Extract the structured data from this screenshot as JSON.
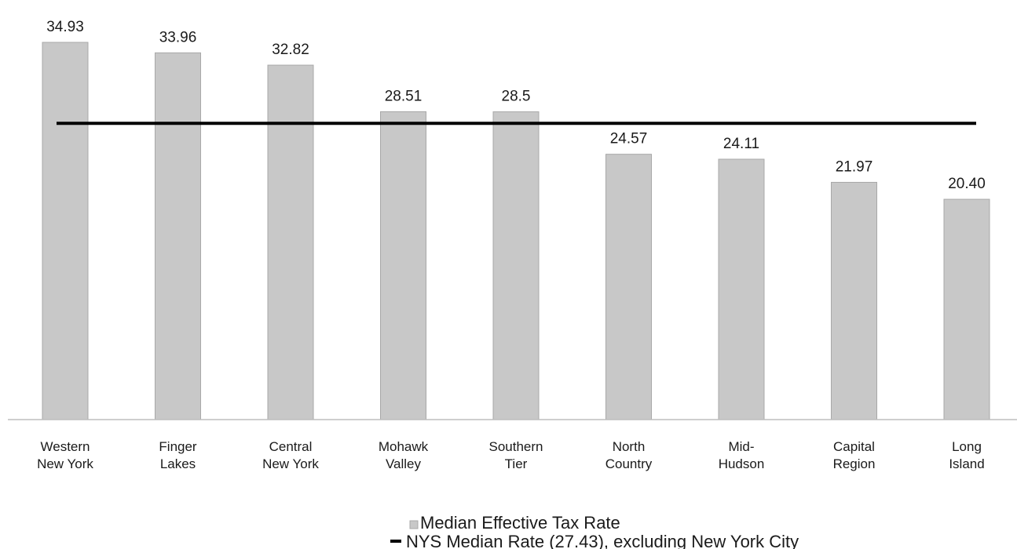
{
  "chart_data": {
    "type": "bar",
    "title": "",
    "xlabel": "",
    "ylabel": "",
    "ylim": [
      0,
      37
    ],
    "grid": false,
    "categories": [
      [
        "Western",
        "New York"
      ],
      [
        "Finger",
        "Lakes"
      ],
      [
        "Central",
        "New York"
      ],
      [
        "Mohawk",
        "Valley"
      ],
      [
        "Southern",
        "Tier"
      ],
      [
        "North",
        "Country"
      ],
      [
        "Mid-",
        "Hudson"
      ],
      [
        "Capital",
        "Region"
      ],
      [
        "Long",
        "Island"
      ]
    ],
    "series": [
      {
        "name": "Median Effective Tax Rate",
        "values": [
          34.93,
          33.96,
          32.82,
          28.51,
          28.5,
          24.57,
          24.11,
          21.97,
          20.4
        ],
        "labels": [
          "34.93",
          "33.96",
          "32.82",
          "28.51",
          "28.5",
          "24.57",
          "24.11",
          "21.97",
          "20.40"
        ],
        "color": "#c8c8c8",
        "border_color": "#a8a8a8"
      }
    ],
    "reference_line": {
      "name": "NYS Median Rate (27.43), excluding New York City",
      "value": 27.43,
      "color": "#000000"
    },
    "legend_placement": "bottom"
  }
}
